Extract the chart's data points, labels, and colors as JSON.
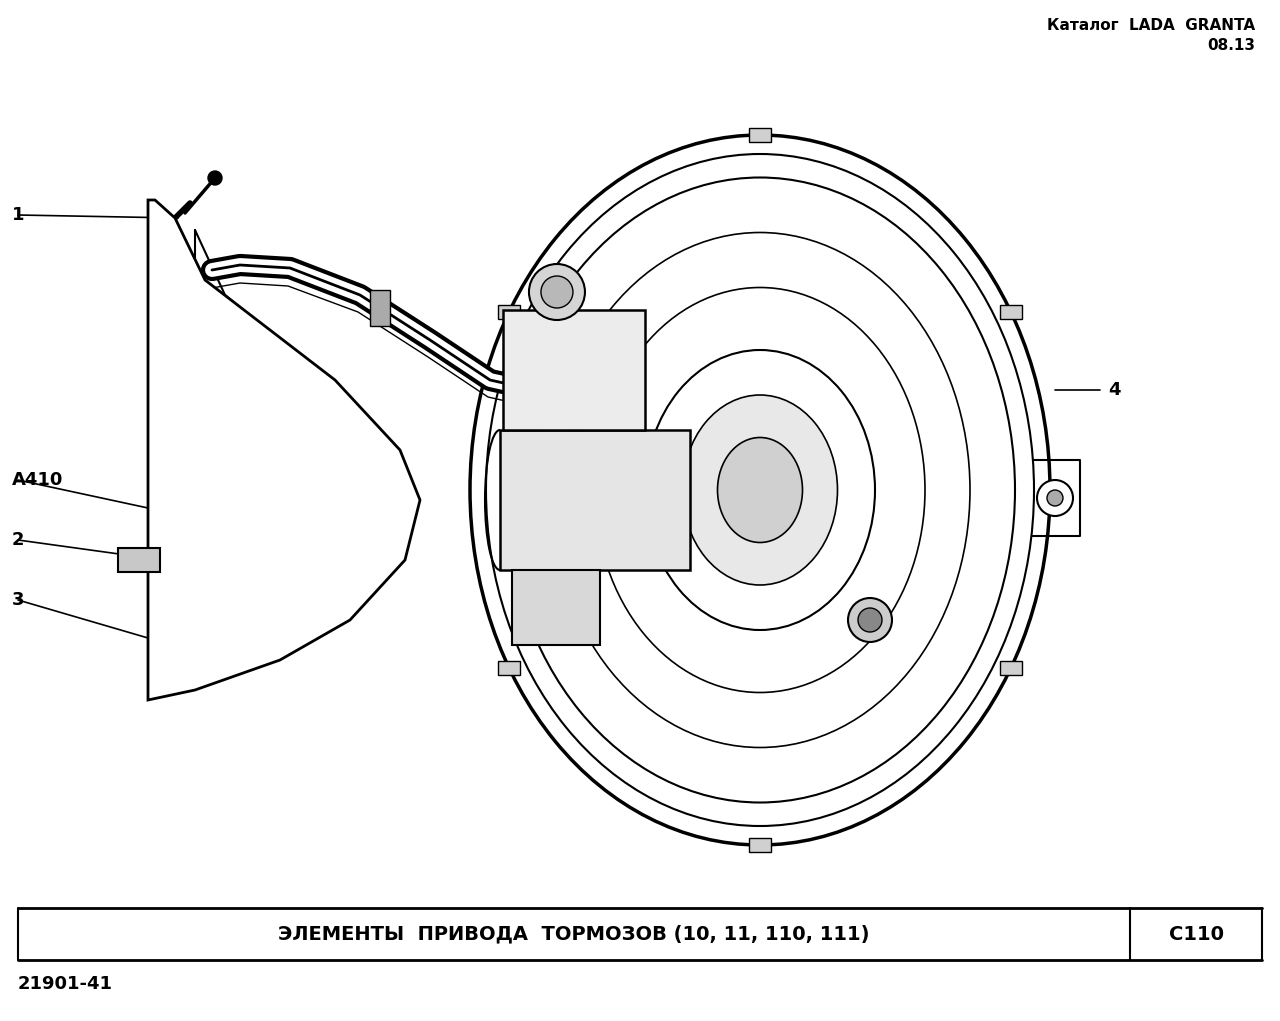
{
  "bg_color": "#ffffff",
  "header_line1": "Каталог  LADA  GRANTA",
  "header_line2": "08.13",
  "footer_title": "ЭЛЕМЕНТЫ  ПРИВОДА  ТОРМОЗОВ (10, 11, 110, 111)",
  "footer_code": "C110",
  "bottom_code": "21901-41",
  "label_fontsize": 13,
  "header_fontsize": 11,
  "footer_fontsize": 14
}
